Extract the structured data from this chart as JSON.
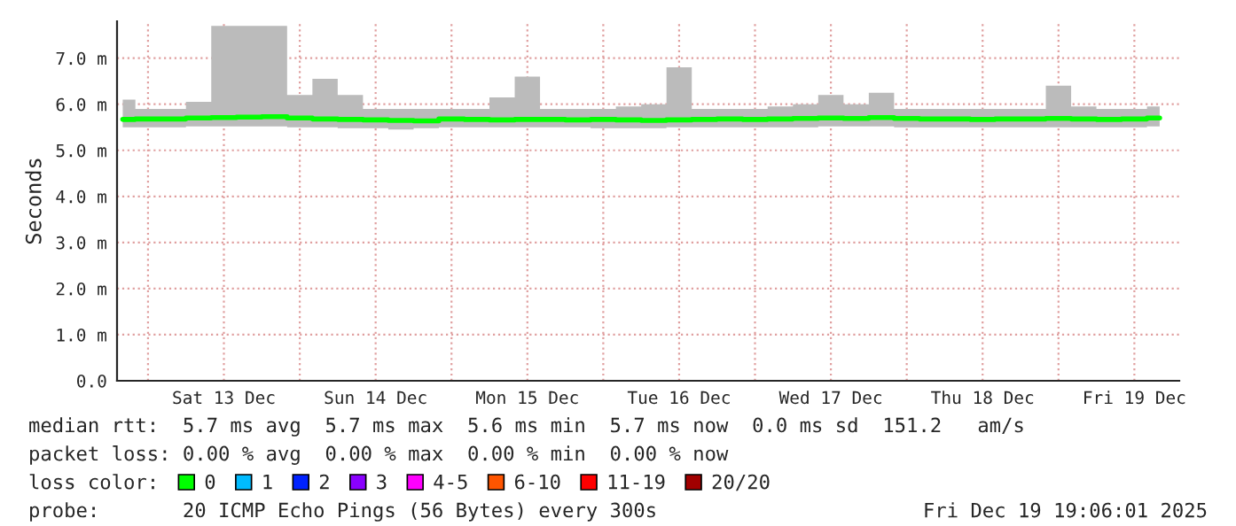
{
  "chart_data": {
    "type": "line",
    "ylabel": "Seconds",
    "legend_title": "loss color:",
    "legend": "bottom",
    "grid": true,
    "line_style": "solid",
    "marker": "none",
    "x": [
      "2025-12-12T20:00",
      "2025-12-13T00:00",
      "2025-12-13T04:00",
      "2025-12-13T08:00",
      "2025-12-13T12:00",
      "2025-12-13T16:00",
      "2025-12-13T20:00",
      "2025-12-14T00:00",
      "2025-12-14T04:00",
      "2025-12-14T08:00",
      "2025-12-14T12:00",
      "2025-12-14T16:00",
      "2025-12-14T20:00",
      "2025-12-15T00:00",
      "2025-12-15T04:00",
      "2025-12-15T08:00",
      "2025-12-15T12:00",
      "2025-12-15T16:00",
      "2025-12-15T20:00",
      "2025-12-16T00:00",
      "2025-12-16T04:00",
      "2025-12-16T08:00",
      "2025-12-16T12:00",
      "2025-12-16T16:00",
      "2025-12-16T20:00",
      "2025-12-17T00:00",
      "2025-12-17T04:00",
      "2025-12-17T08:00",
      "2025-12-17T12:00",
      "2025-12-17T16:00",
      "2025-12-17T20:00",
      "2025-12-18T00:00",
      "2025-12-18T04:00",
      "2025-12-18T08:00",
      "2025-12-18T12:00",
      "2025-12-18T16:00",
      "2025-12-18T20:00",
      "2025-12-19T00:00",
      "2025-12-19T04:00",
      "2025-12-19T08:00",
      "2025-12-19T12:00",
      "2025-12-19T16:00"
    ],
    "series": [
      {
        "name": "0",
        "color": "#00ff00",
        "values": [
          5.67,
          5.68,
          5.68,
          5.7,
          5.71,
          5.72,
          5.73,
          5.7,
          5.68,
          5.67,
          5.66,
          5.65,
          5.64,
          5.68,
          5.67,
          5.66,
          5.67,
          5.67,
          5.66,
          5.67,
          5.66,
          5.65,
          5.66,
          5.67,
          5.68,
          5.67,
          5.68,
          5.69,
          5.7,
          5.69,
          5.71,
          5.69,
          5.68,
          5.68,
          5.67,
          5.68,
          5.68,
          5.69,
          5.68,
          5.67,
          5.68,
          5.7
        ],
        "lower": [
          5.5,
          5.5,
          5.5,
          5.52,
          5.52,
          5.52,
          5.52,
          5.5,
          5.5,
          5.48,
          5.48,
          5.45,
          5.48,
          5.5,
          5.5,
          5.5,
          5.5,
          5.5,
          5.5,
          5.48,
          5.48,
          5.48,
          5.5,
          5.5,
          5.5,
          5.5,
          5.5,
          5.5,
          5.52,
          5.52,
          5.52,
          5.5,
          5.5,
          5.5,
          5.5,
          5.5,
          5.5,
          5.5,
          5.5,
          5.5,
          5.5,
          5.52
        ],
        "upper": [
          6.1,
          5.9,
          5.9,
          6.05,
          7.7,
          7.7,
          7.7,
          6.2,
          6.55,
          6.2,
          5.9,
          5.9,
          5.9,
          5.9,
          5.9,
          6.15,
          6.6,
          5.9,
          5.9,
          5.9,
          5.95,
          6.0,
          6.8,
          5.9,
          5.9,
          5.9,
          5.95,
          6.0,
          6.2,
          6.0,
          6.25,
          5.9,
          5.9,
          5.9,
          5.9,
          5.9,
          5.9,
          6.4,
          5.95,
          5.9,
          5.9,
          5.95
        ]
      },
      {
        "name": "1",
        "color": "#00bbff",
        "values": [
          null,
          null,
          null,
          null,
          null,
          null,
          null,
          null,
          null,
          null,
          null,
          null,
          null,
          null,
          null,
          null,
          null,
          null,
          null,
          null,
          null,
          null,
          null,
          null,
          null,
          null,
          null,
          null,
          null,
          null,
          null,
          null,
          null,
          null,
          null,
          null,
          null,
          null,
          null,
          null,
          null,
          null
        ]
      },
      {
        "name": "2",
        "color": "#0022ff",
        "values": [
          null,
          null,
          null,
          null,
          null,
          null,
          null,
          null,
          null,
          null,
          null,
          null,
          null,
          null,
          null,
          null,
          null,
          null,
          null,
          null,
          null,
          null,
          null,
          null,
          null,
          null,
          null,
          null,
          null,
          null,
          null,
          null,
          null,
          null,
          null,
          null,
          null,
          null,
          null,
          null,
          null,
          null
        ]
      },
      {
        "name": "3",
        "color": "#8a00ff",
        "values": [
          null,
          null,
          null,
          null,
          null,
          null,
          null,
          null,
          null,
          null,
          null,
          null,
          null,
          null,
          null,
          null,
          null,
          null,
          null,
          null,
          null,
          null,
          null,
          null,
          null,
          null,
          null,
          null,
          null,
          null,
          null,
          null,
          null,
          null,
          null,
          null,
          null,
          null,
          null,
          null,
          null,
          null
        ]
      },
      {
        "name": "4-5",
        "color": "#ff00ff",
        "values": [
          null,
          null,
          null,
          null,
          null,
          null,
          null,
          null,
          null,
          null,
          null,
          null,
          null,
          null,
          null,
          null,
          null,
          null,
          null,
          null,
          null,
          null,
          null,
          null,
          null,
          null,
          null,
          null,
          null,
          null,
          null,
          null,
          null,
          null,
          null,
          null,
          null,
          null,
          null,
          null,
          null,
          null
        ]
      },
      {
        "name": "6-10",
        "color": "#ff5500",
        "values": [
          null,
          null,
          null,
          null,
          null,
          null,
          null,
          null,
          null,
          null,
          null,
          null,
          null,
          null,
          null,
          null,
          null,
          null,
          null,
          null,
          null,
          null,
          null,
          null,
          null,
          null,
          null,
          null,
          null,
          null,
          null,
          null,
          null,
          null,
          null,
          null,
          null,
          null,
          null,
          null,
          null,
          null
        ]
      },
      {
        "name": "11-19",
        "color": "#ff0000",
        "values": [
          null,
          null,
          null,
          null,
          null,
          null,
          null,
          null,
          null,
          null,
          null,
          null,
          null,
          null,
          null,
          null,
          null,
          null,
          null,
          null,
          null,
          null,
          null,
          null,
          null,
          null,
          null,
          null,
          null,
          null,
          null,
          null,
          null,
          null,
          null,
          null,
          null,
          null,
          null,
          null,
          null,
          null
        ]
      },
      {
        "name": "20/20",
        "color": "#a10000",
        "values": [
          null,
          null,
          null,
          null,
          null,
          null,
          null,
          null,
          null,
          null,
          null,
          null,
          null,
          null,
          null,
          null,
          null,
          null,
          null,
          null,
          null,
          null,
          null,
          null,
          null,
          null,
          null,
          null,
          null,
          null,
          null,
          null,
          null,
          null,
          null,
          null,
          null,
          null,
          null,
          null,
          null,
          null
        ]
      }
    ],
    "xlim": [
      "2025-12-12T19:06",
      "2025-12-19T19:06"
    ],
    "xticks": [
      {
        "value": "2025-12-13T00:00",
        "label": null
      },
      {
        "value": "2025-12-13T12:00",
        "label": "Sat 13 Dec"
      },
      {
        "value": "2025-12-14T00:00",
        "label": null
      },
      {
        "value": "2025-12-14T12:00",
        "label": "Sun 14 Dec"
      },
      {
        "value": "2025-12-15T00:00",
        "label": null
      },
      {
        "value": "2025-12-15T12:00",
        "label": "Mon 15 Dec"
      },
      {
        "value": "2025-12-16T00:00",
        "label": null
      },
      {
        "value": "2025-12-16T12:00",
        "label": "Tue 16 Dec"
      },
      {
        "value": "2025-12-17T00:00",
        "label": null
      },
      {
        "value": "2025-12-17T12:00",
        "label": "Wed 17 Dec"
      },
      {
        "value": "2025-12-18T00:00",
        "label": null
      },
      {
        "value": "2025-12-18T12:00",
        "label": "Thu 18 Dec"
      },
      {
        "value": "2025-12-19T00:00",
        "label": null
      },
      {
        "value": "2025-12-19T12:00",
        "label": "Fri 19 Dec"
      }
    ],
    "ylim": [
      0,
      7.8
    ],
    "yticks": [
      {
        "value": 0,
        "label": "0.0"
      },
      {
        "value": 1,
        "label": "1.0 m"
      },
      {
        "value": 2,
        "label": "2.0 m"
      },
      {
        "value": 3,
        "label": "3.0 m"
      },
      {
        "value": 4,
        "label": "4.0 m"
      },
      {
        "value": 5,
        "label": "5.0 m"
      },
      {
        "value": 6,
        "label": "6.0 m"
      },
      {
        "value": 7,
        "label": "7.0 m"
      }
    ],
    "annotations": [
      "median rtt:  5.7 ms avg  5.7 ms max  5.6 ms min  5.7 ms now  0.0 ms sd  151.2   am/s",
      "packet loss: 0.00 % avg  0.00 % max  0.00 % min  0.00 % now",
      "probe:       20 ICMP Echo Pings (56 Bytes) every 300s",
      "Fri Dec 19 19:06:01 2025"
    ]
  }
}
